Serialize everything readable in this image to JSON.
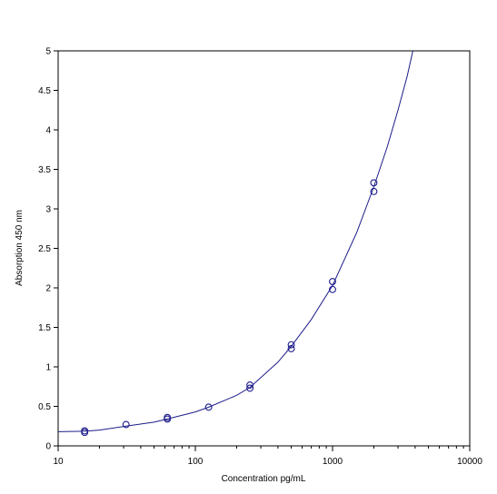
{
  "chart_data": {
    "type": "scatter",
    "xlabel": "Concentration pg/mL",
    "ylabel": "Absorption 450 nm",
    "xscale": "log",
    "xlim": [
      10,
      10000
    ],
    "ylim": [
      0,
      5
    ],
    "x_ticks": [
      "10",
      "100",
      "1000",
      "10000"
    ],
    "y_ticks": [
      "0",
      "0.5",
      "1",
      "1.5",
      "2",
      "2.5",
      "3",
      "3.5",
      "4",
      "4.5",
      "5"
    ],
    "grid": false,
    "legend": "none",
    "series": [
      {
        "marker": "open-circle",
        "color": "#1c1c8a",
        "points": [
          {
            "x": 15.6,
            "y": 0.17
          },
          {
            "x": 15.6,
            "y": 0.19
          },
          {
            "x": 31.25,
            "y": 0.27
          },
          {
            "x": 62.5,
            "y": 0.34
          },
          {
            "x": 62.5,
            "y": 0.36
          },
          {
            "x": 125,
            "y": 0.49
          },
          {
            "x": 250,
            "y": 0.73
          },
          {
            "x": 250,
            "y": 0.77
          },
          {
            "x": 500,
            "y": 1.23
          },
          {
            "x": 500,
            "y": 1.28
          },
          {
            "x": 1000,
            "y": 1.98
          },
          {
            "x": 1000,
            "y": 2.08
          },
          {
            "x": 2000,
            "y": 3.22
          },
          {
            "x": 2000,
            "y": 3.33
          }
        ]
      }
    ],
    "fit_curve": {
      "color": "#1c1c8a",
      "points": [
        {
          "x": 10,
          "y": 0.18
        },
        {
          "x": 15.6,
          "y": 0.185
        },
        {
          "x": 20,
          "y": 0.2
        },
        {
          "x": 31.25,
          "y": 0.25
        },
        {
          "x": 50,
          "y": 0.3
        },
        {
          "x": 62.5,
          "y": 0.34
        },
        {
          "x": 100,
          "y": 0.43
        },
        {
          "x": 125,
          "y": 0.49
        },
        {
          "x": 200,
          "y": 0.64
        },
        {
          "x": 250,
          "y": 0.74
        },
        {
          "x": 400,
          "y": 1.06
        },
        {
          "x": 500,
          "y": 1.26
        },
        {
          "x": 700,
          "y": 1.6
        },
        {
          "x": 1000,
          "y": 2.03
        },
        {
          "x": 1500,
          "y": 2.7
        },
        {
          "x": 2000,
          "y": 3.28
        },
        {
          "x": 2500,
          "y": 3.78
        },
        {
          "x": 3000,
          "y": 4.25
        },
        {
          "x": 3500,
          "y": 4.68
        },
        {
          "x": 3850,
          "y": 5.0
        }
      ]
    }
  }
}
